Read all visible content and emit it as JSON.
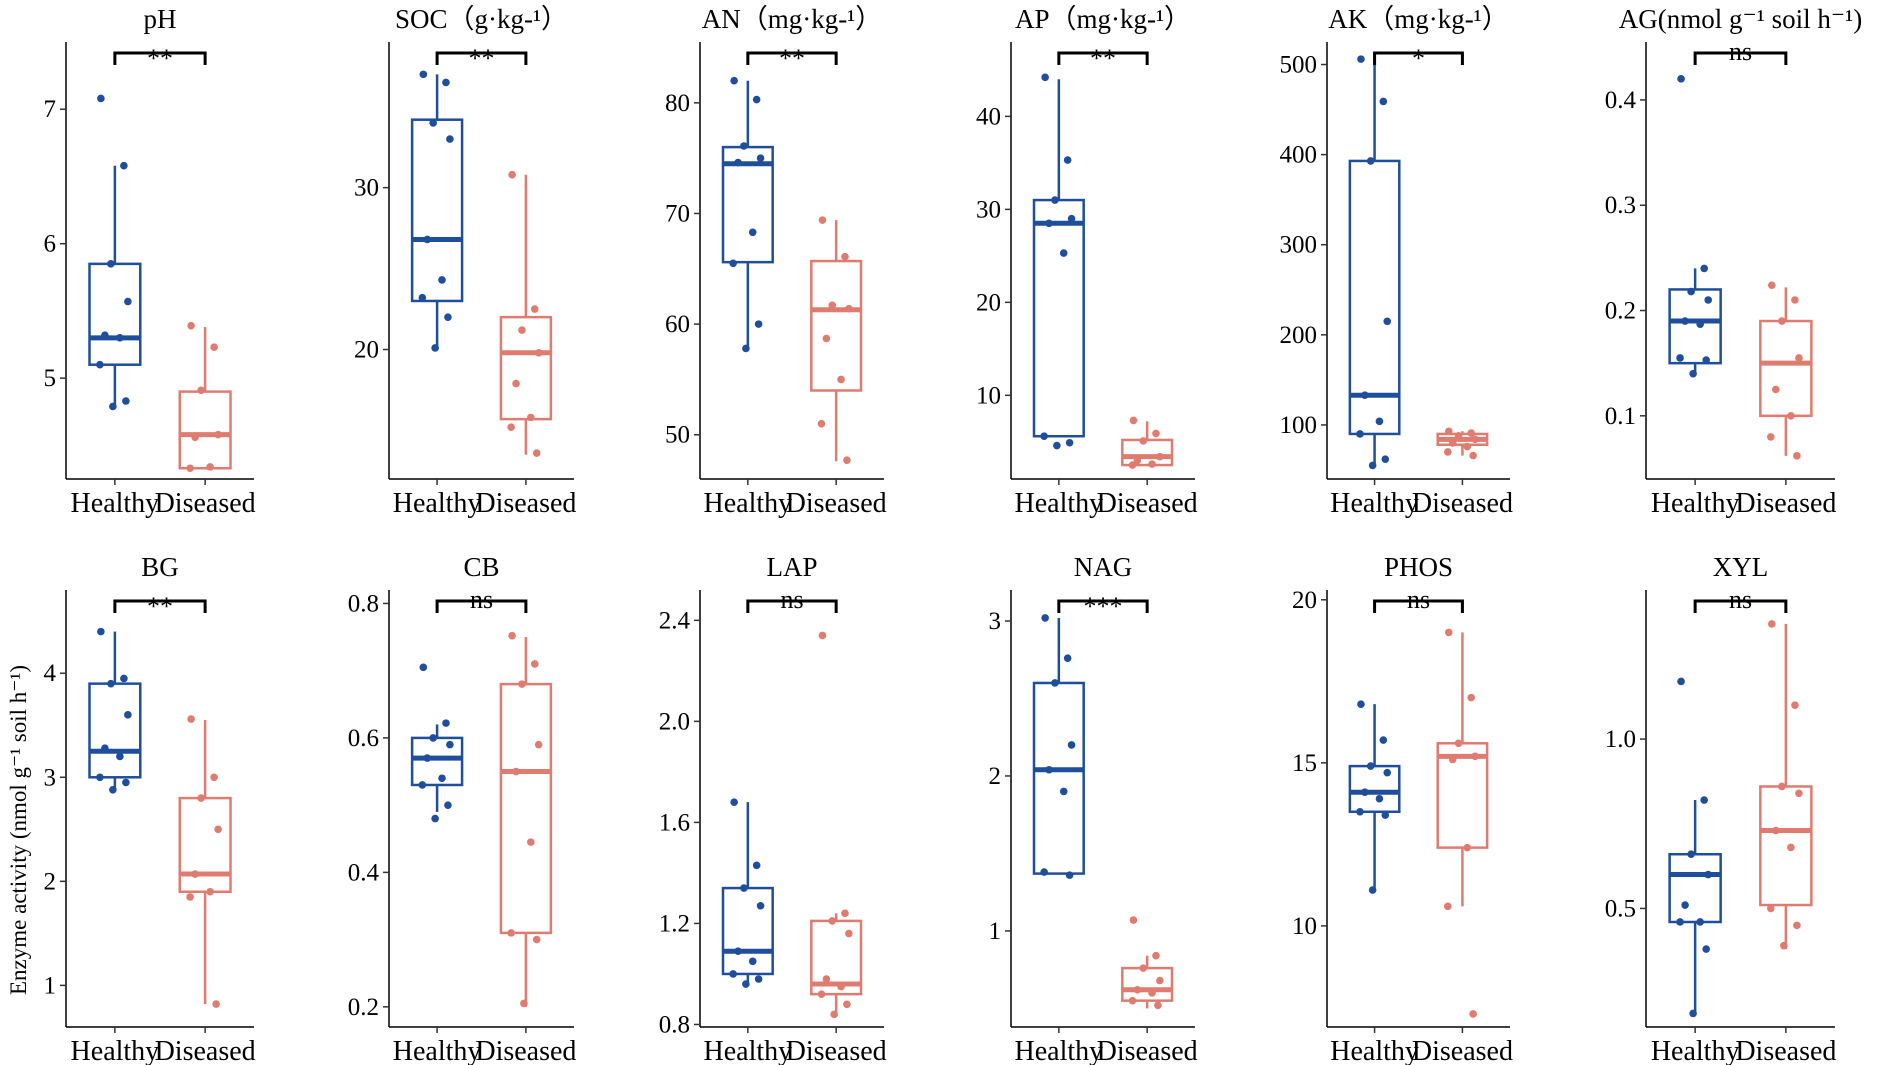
{
  "colors": {
    "healthy": "#1F4E9C",
    "diseased": "#E07B70",
    "bracket": "#000000"
  },
  "y_axis_label": "Enzyme activity (nmol g⁻¹ soil h⁻¹)",
  "chart_data": [
    {
      "type": "boxplot",
      "title": "pH",
      "categories": [
        "Healthy",
        "Diseased"
      ],
      "ylim": [
        4.25,
        7.5
      ],
      "yticks": [
        5,
        6,
        7
      ],
      "significance": "**",
      "series": [
        {
          "name": "Healthy",
          "whisker_low": 4.78,
          "q1": 5.1,
          "median": 5.3,
          "q3": 5.85,
          "whisker_high": 6.58,
          "points": [
            7.08,
            6.58,
            5.85,
            5.57,
            5.32,
            5.3,
            5.1,
            4.83,
            4.79
          ]
        },
        {
          "name": "Diseased",
          "whisker_low": 4.33,
          "q1": 4.33,
          "median": 4.58,
          "q3": 4.9,
          "whisker_high": 5.38,
          "points": [
            5.39,
            5.23,
            4.91,
            4.58,
            4.56,
            4.34,
            4.33
          ]
        }
      ]
    },
    {
      "type": "boxplot",
      "title": "SOC（g·kg-¹）",
      "categories": [
        "Healthy",
        "Diseased"
      ],
      "ylim": [
        12,
        39
      ],
      "yticks": [
        20,
        30
      ],
      "significance": "**",
      "series": [
        {
          "name": "Healthy",
          "whisker_low": 20.0,
          "q1": 23.0,
          "median": 26.8,
          "q3": 34.2,
          "whisker_high": 37.0,
          "points": [
            37.0,
            36.5,
            34.0,
            33.0,
            26.8,
            24.3,
            23.2,
            22.0,
            20.1
          ]
        },
        {
          "name": "Diseased",
          "whisker_low": 13.5,
          "q1": 15.7,
          "median": 19.8,
          "q3": 22.0,
          "whisker_high": 30.8,
          "points": [
            30.8,
            22.5,
            21.2,
            19.8,
            17.9,
            15.8,
            15.2,
            13.6
          ]
        }
      ]
    },
    {
      "type": "boxplot",
      "title": "AN（mg·kg-¹）",
      "categories": [
        "Healthy",
        "Diseased"
      ],
      "ylim": [
        46,
        85.5
      ],
      "yticks": [
        50,
        60,
        70,
        80
      ],
      "significance": "**",
      "series": [
        {
          "name": "Healthy",
          "whisker_low": 57.7,
          "q1": 65.6,
          "median": 74.5,
          "q3": 76.0,
          "whisker_high": 82.0,
          "points": [
            82.0,
            80.3,
            76.1,
            75.0,
            74.6,
            68.3,
            65.5,
            60.0,
            57.8
          ]
        },
        {
          "name": "Diseased",
          "whisker_low": 47.6,
          "q1": 54.0,
          "median": 61.3,
          "q3": 65.7,
          "whisker_high": 69.4,
          "points": [
            69.4,
            66.1,
            61.7,
            61.4,
            58.7,
            55.0,
            51.0,
            47.7
          ]
        }
      ]
    },
    {
      "type": "boxplot",
      "title": "AP（mg·kg-¹）",
      "categories": [
        "Healthy",
        "Diseased"
      ],
      "ylim": [
        1,
        48
      ],
      "yticks": [
        10,
        20,
        30,
        40
      ],
      "significance": "**",
      "series": [
        {
          "name": "Healthy",
          "whisker_low": 5.6,
          "q1": 5.6,
          "median": 28.5,
          "q3": 31.0,
          "whisker_high": 44.0,
          "points": [
            44.2,
            35.3,
            31.0,
            29.0,
            28.5,
            25.3,
            5.6,
            4.9,
            4.6
          ]
        },
        {
          "name": "Diseased",
          "whisker_low": 2.5,
          "q1": 2.5,
          "median": 3.4,
          "q3": 5.2,
          "whisker_high": 7.2,
          "points": [
            7.3,
            5.9,
            5.1,
            3.4,
            3.0,
            2.6,
            2.5
          ]
        }
      ]
    },
    {
      "type": "boxplot",
      "title": "AK（mg·kg-¹）",
      "categories": [
        "Healthy",
        "Diseased"
      ],
      "ylim": [
        40,
        525
      ],
      "yticks": [
        100,
        200,
        300,
        400,
        500
      ],
      "significance": "*",
      "series": [
        {
          "name": "Healthy",
          "whisker_low": 54,
          "q1": 90,
          "median": 133,
          "q3": 393,
          "whisker_high": 506,
          "points": [
            506,
            459,
            393,
            215,
            133,
            104,
            90,
            62,
            55
          ]
        },
        {
          "name": "Diseased",
          "whisker_low": 66,
          "q1": 78,
          "median": 84,
          "q3": 90,
          "whisker_high": 93,
          "points": [
            93,
            91,
            88,
            84,
            80,
            76,
            70,
            66
          ]
        }
      ]
    },
    {
      "type": "boxplot",
      "title": "AG(nmol g⁻¹ soil h⁻¹)",
      "categories": [
        "Healthy",
        "Diseased"
      ],
      "ylim": [
        0.04,
        0.455
      ],
      "yticks": [
        0.1,
        0.2,
        0.3,
        0.4
      ],
      "significance": "ns",
      "series": [
        {
          "name": "Healthy",
          "whisker_low": 0.14,
          "q1": 0.15,
          "median": 0.19,
          "q3": 0.22,
          "whisker_high": 0.24,
          "points": [
            0.42,
            0.24,
            0.218,
            0.21,
            0.19,
            0.187,
            0.155,
            0.153,
            0.14
          ]
        },
        {
          "name": "Diseased",
          "whisker_low": 0.062,
          "q1": 0.1,
          "median": 0.15,
          "q3": 0.19,
          "whisker_high": 0.222,
          "points": [
            0.224,
            0.21,
            0.19,
            0.155,
            0.125,
            0.1,
            0.08,
            0.062
          ]
        }
      ]
    },
    {
      "type": "boxplot",
      "title": "BG",
      "categories": [
        "Healthy",
        "Diseased"
      ],
      "ylim": [
        0.6,
        4.8
      ],
      "yticks": [
        1,
        2,
        3,
        4
      ],
      "significance": "**",
      "series": [
        {
          "name": "Healthy",
          "whisker_low": 2.88,
          "q1": 3.0,
          "median": 3.25,
          "q3": 3.9,
          "whisker_high": 4.4,
          "points": [
            4.4,
            3.95,
            3.9,
            3.6,
            3.28,
            3.2,
            3.0,
            2.95,
            2.88
          ]
        },
        {
          "name": "Diseased",
          "whisker_low": 0.82,
          "q1": 1.9,
          "median": 2.07,
          "q3": 2.8,
          "whisker_high": 3.55,
          "points": [
            3.56,
            3.0,
            2.8,
            2.5,
            2.07,
            1.9,
            1.85,
            0.82
          ]
        }
      ]
    },
    {
      "type": "boxplot",
      "title": "CB",
      "categories": [
        "Healthy",
        "Diseased"
      ],
      "ylim": [
        0.17,
        0.82
      ],
      "yticks": [
        0.2,
        0.4,
        0.6,
        0.8
      ],
      "significance": "ns",
      "series": [
        {
          "name": "Healthy",
          "whisker_low": 0.49,
          "q1": 0.53,
          "median": 0.57,
          "q3": 0.6,
          "whisker_high": 0.62,
          "points": [
            0.705,
            0.622,
            0.6,
            0.59,
            0.57,
            0.54,
            0.53,
            0.5,
            0.48
          ]
        },
        {
          "name": "Diseased",
          "whisker_low": 0.2,
          "q1": 0.31,
          "median": 0.55,
          "q3": 0.68,
          "whisker_high": 0.75,
          "points": [
            0.752,
            0.71,
            0.68,
            0.59,
            0.55,
            0.445,
            0.31,
            0.3,
            0.205
          ]
        }
      ]
    },
    {
      "type": "boxplot",
      "title": "LAP",
      "categories": [
        "Healthy",
        "Diseased"
      ],
      "ylim": [
        0.79,
        2.52
      ],
      "yticks": [
        0.8,
        1.2,
        1.6,
        2.0,
        2.4
      ],
      "significance": "ns",
      "series": [
        {
          "name": "Healthy",
          "whisker_low": 0.96,
          "q1": 1.0,
          "median": 1.09,
          "q3": 1.34,
          "whisker_high": 1.68,
          "points": [
            1.68,
            1.43,
            1.34,
            1.27,
            1.09,
            1.05,
            1.0,
            0.98,
            0.96
          ]
        },
        {
          "name": "Diseased",
          "whisker_low": 0.84,
          "q1": 0.92,
          "median": 0.96,
          "q3": 1.21,
          "whisker_high": 1.24,
          "points": [
            2.34,
            1.24,
            1.21,
            1.16,
            0.98,
            0.95,
            0.92,
            0.88,
            0.84
          ]
        }
      ]
    },
    {
      "type": "boxplot",
      "title": "NAG",
      "categories": [
        "Healthy",
        "Diseased"
      ],
      "ylim": [
        0.38,
        3.2
      ],
      "yticks": [
        1,
        2,
        3
      ],
      "significance": "***",
      "series": [
        {
          "name": "Healthy",
          "whisker_low": 1.37,
          "q1": 1.37,
          "median": 2.04,
          "q3": 2.6,
          "whisker_high": 3.02,
          "points": [
            3.02,
            2.76,
            2.6,
            2.2,
            2.04,
            1.9,
            1.38,
            1.36
          ]
        },
        {
          "name": "Diseased",
          "whisker_low": 0.5,
          "q1": 0.55,
          "median": 0.62,
          "q3": 0.76,
          "whisker_high": 0.84,
          "points": [
            1.07,
            0.84,
            0.76,
            0.68,
            0.62,
            0.6,
            0.55,
            0.52
          ]
        }
      ]
    },
    {
      "type": "boxplot",
      "title": "PHOS",
      "categories": [
        "Healthy",
        "Diseased"
      ],
      "ylim": [
        6.9,
        20.3
      ],
      "yticks": [
        10,
        15,
        20
      ],
      "significance": "ns",
      "series": [
        {
          "name": "Healthy",
          "whisker_low": 11.1,
          "q1": 13.5,
          "median": 14.1,
          "q3": 14.9,
          "whisker_high": 16.8,
          "points": [
            16.8,
            15.7,
            14.9,
            14.7,
            14.1,
            13.9,
            13.5,
            13.4,
            11.1
          ]
        },
        {
          "name": "Diseased",
          "whisker_low": 10.6,
          "q1": 12.4,
          "median": 15.2,
          "q3": 15.6,
          "whisker_high": 19.0,
          "points": [
            19.0,
            17.0,
            15.6,
            15.2,
            15.1,
            12.4,
            10.6,
            7.3
          ]
        }
      ]
    },
    {
      "type": "boxplot",
      "title": "XYL",
      "categories": [
        "Healthy",
        "Diseased"
      ],
      "ylim": [
        0.15,
        1.44
      ],
      "yticks": [
        0.5,
        1.0
      ],
      "significance": "ns",
      "series": [
        {
          "name": "Healthy",
          "whisker_low": 0.19,
          "q1": 0.46,
          "median": 0.6,
          "q3": 0.66,
          "whisker_high": 0.82,
          "points": [
            1.17,
            0.82,
            0.66,
            0.6,
            0.51,
            0.46,
            0.46,
            0.38,
            0.19
          ]
        },
        {
          "name": "Diseased",
          "whisker_low": 0.38,
          "q1": 0.51,
          "median": 0.73,
          "q3": 0.86,
          "whisker_high": 1.34,
          "points": [
            1.34,
            1.1,
            0.86,
            0.84,
            0.73,
            0.68,
            0.5,
            0.45,
            0.39
          ]
        }
      ]
    }
  ]
}
